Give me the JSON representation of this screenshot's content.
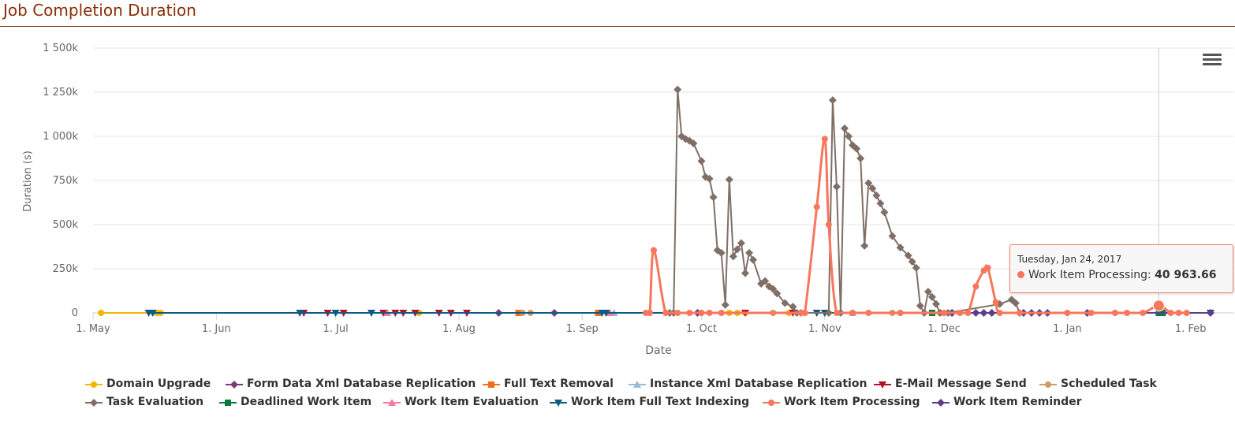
{
  "title": "Job Completion Duration",
  "tooltip": {
    "date": "Tuesday, Jan 24, 2017",
    "series": "Work Item Processing",
    "value": "40 963.66",
    "color": "#f7765c"
  },
  "chart_data": {
    "type": "line",
    "title": "Job Completion Duration",
    "xlabel": "Date",
    "ylabel": "Duration (s)",
    "x_ticks": [
      "1. May",
      "1. Jun",
      "1. Jul",
      "1. Aug",
      "1. Sep",
      "1. Oct",
      "1. Nov",
      "1. Dec",
      "1. Jan",
      "1. Feb"
    ],
    "y_ticks": [
      "0",
      "250k",
      "500k",
      "750k",
      "1 000k",
      "1 250k",
      "1 500k"
    ],
    "ylim": [
      0,
      1500000
    ],
    "xlim": [
      "2016-05-01",
      "2017-02-08"
    ],
    "grid": "horizontal",
    "legend_position": "bottom",
    "series": [
      {
        "name": "Domain Upgrade",
        "color": "#f7b500",
        "marker": "circle",
        "x": [
          "2016-05-03",
          "2016-05-17",
          "2016-05-18",
          "2016-07-22",
          "2016-10-08",
          "2016-10-10",
          "2016-10-12",
          "2016-10-19",
          "2016-10-23",
          "2016-10-26"
        ],
        "y": [
          0,
          0,
          0,
          0,
          0,
          0,
          0,
          0,
          0,
          0
        ]
      },
      {
        "name": "Form Data Xml Database Replication",
        "color": "#7b3a7a",
        "marker": "diamond",
        "x": [
          "2016-08-11",
          "2016-08-25",
          "2016-09-30"
        ],
        "y": [
          0,
          0,
          0
        ]
      },
      {
        "name": "Full Text Removal",
        "color": "#f36c1b",
        "marker": "square",
        "x": [
          "2016-08-16",
          "2016-09-05"
        ],
        "y": [
          0,
          0
        ]
      },
      {
        "name": "Instance Xml Database Replication",
        "color": "#99b9d9",
        "marker": "triangle",
        "x": [
          "2016-09-09",
          "2016-11-08"
        ],
        "y": [
          0,
          0
        ]
      },
      {
        "name": "E-Mail Message Send",
        "color": "#b0122a",
        "marker": "triangle-down",
        "x": [
          "2016-06-23",
          "2016-06-29",
          "2016-07-03",
          "2016-07-13",
          "2016-07-16",
          "2016-07-18",
          "2016-07-21",
          "2016-07-27",
          "2016-07-30",
          "2016-08-03",
          "2016-10-12",
          "2016-10-24"
        ],
        "y": [
          0,
          0,
          0,
          0,
          0,
          0,
          0,
          0,
          0,
          0,
          0,
          0
        ]
      },
      {
        "name": "Scheduled Task",
        "color": "#d09a64",
        "marker": "circle",
        "x": [
          "2016-08-17",
          "2016-08-19",
          "2016-10-19",
          "2016-11-18",
          "2016-11-20",
          "2016-11-30",
          "2016-12-03"
        ],
        "y": [
          0,
          0,
          0,
          0,
          0,
          0,
          0
        ]
      },
      {
        "name": "Task Evaluation",
        "color": "#7f6f66",
        "marker": "diamond",
        "x": [
          "2016-09-23",
          "2016-09-24",
          "2016-09-25",
          "2016-09-26",
          "2016-09-27",
          "2016-09-28",
          "2016-09-29",
          "2016-10-01",
          "2016-10-02",
          "2016-10-03",
          "2016-10-04",
          "2016-10-05",
          "2016-10-06",
          "2016-10-07",
          "2016-10-08",
          "2016-10-09",
          "2016-10-10",
          "2016-10-11",
          "2016-10-12",
          "2016-10-13",
          "2016-10-14",
          "2016-10-16",
          "2016-10-17",
          "2016-10-18",
          "2016-10-19",
          "2016-10-20",
          "2016-10-22",
          "2016-10-24",
          "2016-10-25",
          "2016-10-26",
          "2016-11-02",
          "2016-11-03",
          "2016-11-04",
          "2016-11-05",
          "2016-11-06",
          "2016-11-07",
          "2016-11-08",
          "2016-11-09",
          "2016-11-10",
          "2016-11-11",
          "2016-11-12",
          "2016-11-13",
          "2016-11-14",
          "2016-11-15",
          "2016-11-16",
          "2016-11-18",
          "2016-11-20",
          "2016-11-22",
          "2016-11-23",
          "2016-11-24",
          "2016-11-25",
          "2016-11-26",
          "2016-11-27",
          "2016-11-28",
          "2016-11-29",
          "2016-11-30",
          "2016-12-02",
          "2016-12-15",
          "2016-12-18",
          "2016-12-19",
          "2016-12-20"
        ],
        "y": [
          0,
          0,
          1265000,
          1000000,
          985000,
          975000,
          960000,
          860000,
          770000,
          760000,
          655000,
          355000,
          340000,
          45000,
          755000,
          320000,
          360000,
          395000,
          225000,
          340000,
          300000,
          165000,
          180000,
          150000,
          135000,
          110000,
          55000,
          35000,
          0,
          0,
          0,
          1205000,
          715000,
          0,
          1045000,
          1000000,
          950000,
          930000,
          875000,
          380000,
          735000,
          705000,
          665000,
          620000,
          570000,
          435000,
          370000,
          325000,
          290000,
          255000,
          40000,
          0,
          120000,
          90000,
          50000,
          0,
          0,
          50000,
          75000,
          55000,
          0
        ]
      },
      {
        "name": "Deadlined Work Item",
        "color": "#0b7a3e",
        "marker": "square",
        "x": [
          "2016-11-28",
          "2017-01-24",
          "2017-01-25"
        ],
        "y": [
          0,
          0,
          0
        ]
      },
      {
        "name": "Work Item Evaluation",
        "color": "#f47b9a",
        "marker": "triangle",
        "x": [
          "2016-07-14",
          "2016-09-08"
        ],
        "y": [
          0,
          0
        ]
      },
      {
        "name": "Work Item Full Text Indexing",
        "color": "#0e5a82",
        "marker": "triangle-down",
        "x": [
          "2016-05-15",
          "2016-05-16",
          "2016-06-22",
          "2016-07-01",
          "2016-07-10",
          "2016-09-06",
          "2016-09-07",
          "2016-10-30",
          "2016-11-01",
          "2017-02-06"
        ],
        "y": [
          0,
          0,
          0,
          0,
          0,
          0,
          0,
          0,
          0,
          0
        ]
      },
      {
        "name": "Work Item Processing",
        "color": "#f7765c",
        "marker": "circle",
        "x": [
          "2016-09-17",
          "2016-09-18",
          "2016-09-19",
          "2016-09-22",
          "2016-09-25",
          "2016-09-28",
          "2016-10-01",
          "2016-10-03",
          "2016-10-06",
          "2016-10-26",
          "2016-10-27",
          "2016-10-30",
          "2016-11-01",
          "2016-11-02",
          "2016-11-04",
          "2016-11-08",
          "2016-11-12",
          "2016-11-20",
          "2016-12-01",
          "2016-12-05",
          "2016-12-07",
          "2016-12-09",
          "2016-12-11",
          "2016-12-12",
          "2016-12-14",
          "2016-12-15",
          "2016-12-20",
          "2017-01-01",
          "2017-01-07",
          "2017-01-13",
          "2017-01-16",
          "2017-01-20",
          "2017-01-24",
          "2017-01-27",
          "2017-01-29",
          "2017-01-31"
        ],
        "y": [
          0,
          0,
          355000,
          0,
          0,
          0,
          0,
          0,
          0,
          0,
          0,
          600000,
          985000,
          500000,
          0,
          0,
          0,
          0,
          0,
          0,
          0,
          150000,
          240000,
          255000,
          60000,
          0,
          0,
          0,
          0,
          0,
          0,
          0,
          40963.66,
          0,
          0,
          0
        ]
      },
      {
        "name": "Work Item Reminder",
        "color": "#5b3d8c",
        "marker": "diamond",
        "x": [
          "2016-12-03",
          "2016-12-09",
          "2016-12-11",
          "2016-12-13",
          "2016-12-21",
          "2016-12-23",
          "2016-12-25",
          "2016-12-27",
          "2017-01-06",
          "2017-02-06"
        ],
        "y": [
          0,
          0,
          0,
          0,
          0,
          0,
          0,
          0,
          0,
          0
        ]
      }
    ]
  }
}
